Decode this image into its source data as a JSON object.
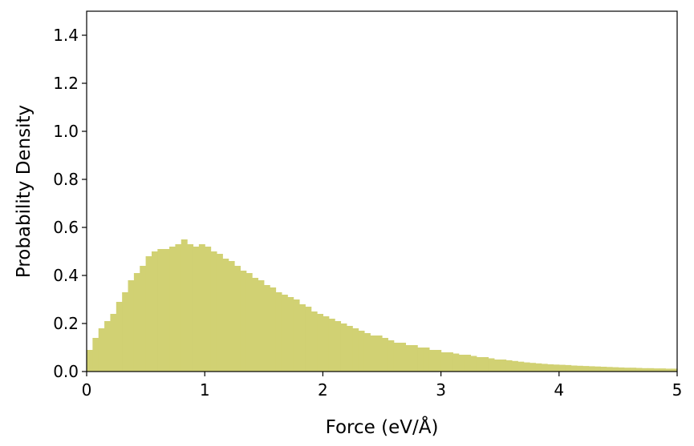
{
  "chart_data": {
    "type": "bar",
    "subtype": "histogram",
    "title": "",
    "xlabel": "Force (eV/Å)",
    "ylabel": "Probability Density",
    "xlim": [
      0,
      5
    ],
    "ylim": [
      0,
      1.5
    ],
    "xticks": [
      0,
      1,
      2,
      3,
      4,
      5
    ],
    "xtick_labels": [
      "0",
      "1",
      "2",
      "3",
      "4",
      "5"
    ],
    "yticks": [
      0.0,
      0.2,
      0.4,
      0.6,
      0.8,
      1.0,
      1.2,
      1.4
    ],
    "ytick_labels": [
      "0.0",
      "0.2",
      "0.4",
      "0.6",
      "0.8",
      "1.0",
      "1.2",
      "1.4"
    ],
    "grid": false,
    "legend": false,
    "bar_color": "#d1d173",
    "bin_width": 0.05,
    "bin_edges_start": 0,
    "values": [
      0.09,
      0.14,
      0.18,
      0.21,
      0.24,
      0.29,
      0.33,
      0.38,
      0.41,
      0.44,
      0.48,
      0.5,
      0.51,
      0.51,
      0.52,
      0.53,
      0.55,
      0.53,
      0.52,
      0.53,
      0.52,
      0.5,
      0.49,
      0.47,
      0.46,
      0.44,
      0.42,
      0.41,
      0.39,
      0.38,
      0.36,
      0.35,
      0.33,
      0.32,
      0.31,
      0.3,
      0.28,
      0.27,
      0.25,
      0.24,
      0.23,
      0.22,
      0.21,
      0.2,
      0.19,
      0.18,
      0.17,
      0.16,
      0.15,
      0.15,
      0.14,
      0.13,
      0.12,
      0.12,
      0.11,
      0.11,
      0.1,
      0.1,
      0.09,
      0.09,
      0.08,
      0.08,
      0.075,
      0.07,
      0.07,
      0.065,
      0.06,
      0.06,
      0.055,
      0.05,
      0.05,
      0.047,
      0.044,
      0.041,
      0.038,
      0.036,
      0.034,
      0.032,
      0.03,
      0.029,
      0.028,
      0.027,
      0.025,
      0.024,
      0.023,
      0.022,
      0.021,
      0.02,
      0.019,
      0.018,
      0.017,
      0.016,
      0.016,
      0.015,
      0.014,
      0.014,
      0.013,
      0.013,
      0.012,
      0.012
    ]
  }
}
